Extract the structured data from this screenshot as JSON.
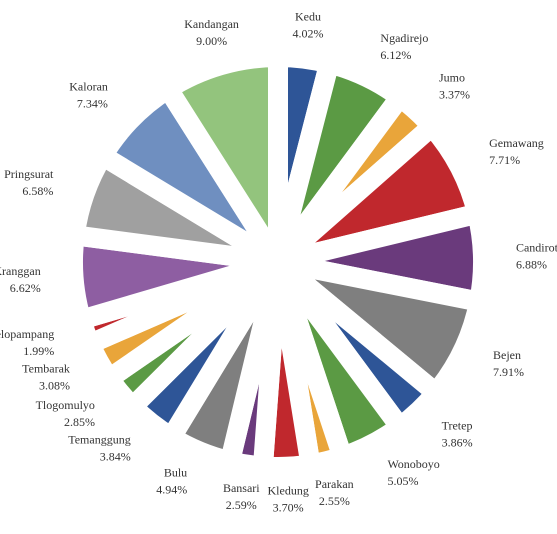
{
  "chart_data": {
    "type": "pie",
    "categories": [
      "Kedu",
      "Ngadirejo",
      "Jumo",
      "Gemawang",
      "Candiroto",
      "Bejen",
      "Tretep",
      "Wonoboyo",
      "Parakan",
      "Kledung",
      "Bansari",
      "Bulu",
      "Temanggung",
      "Tlogomulyo",
      "Tembarak",
      "Selopampang",
      "Kranggan",
      "Pringsurat",
      "Kaloran",
      "Kandangan"
    ],
    "values": [
      4.02,
      6.12,
      3.37,
      7.71,
      6.88,
      7.91,
      3.86,
      5.05,
      2.55,
      3.7,
      2.59,
      4.94,
      3.84,
      2.85,
      3.08,
      1.99,
      6.62,
      6.58,
      7.34,
      9.0
    ],
    "value_labels": [
      "4.02%",
      "6.12%",
      "3.37%",
      "7.71%",
      "6.88%",
      "7.91%",
      "3.86%",
      "5.05%",
      "2.55%",
      "3.70%",
      "2.59%",
      "4.94%",
      "3.84%",
      "2.85%",
      "3.08%",
      "1.99%",
      "6.62%",
      "6.58%",
      "7.34%",
      "9.00%"
    ],
    "colors": [
      "#2e5597",
      "#5b9a44",
      "#e9a53a",
      "#c0282d",
      "#6a3a7c",
      "#7f7f7f",
      "#2e5597",
      "#5b9a44",
      "#e9a53a",
      "#c0282d",
      "#6a3a7c",
      "#7f7f7f",
      "#2e5597",
      "#5b9a44",
      "#e9a53a",
      "#c0282d",
      "#8e5ea2",
      "#a0a0a0",
      "#6f8fc0",
      "#93c47d"
    ]
  }
}
